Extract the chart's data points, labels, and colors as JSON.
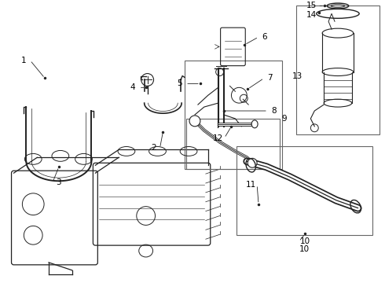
{
  "bg_color": "#ffffff",
  "line_color": "#222222",
  "label_color": "#000000",
  "fig_width": 4.9,
  "fig_height": 3.6,
  "dpi": 100,
  "label_fontsize": 7.5,
  "leader_lw": 0.6,
  "part_lw": 0.9
}
